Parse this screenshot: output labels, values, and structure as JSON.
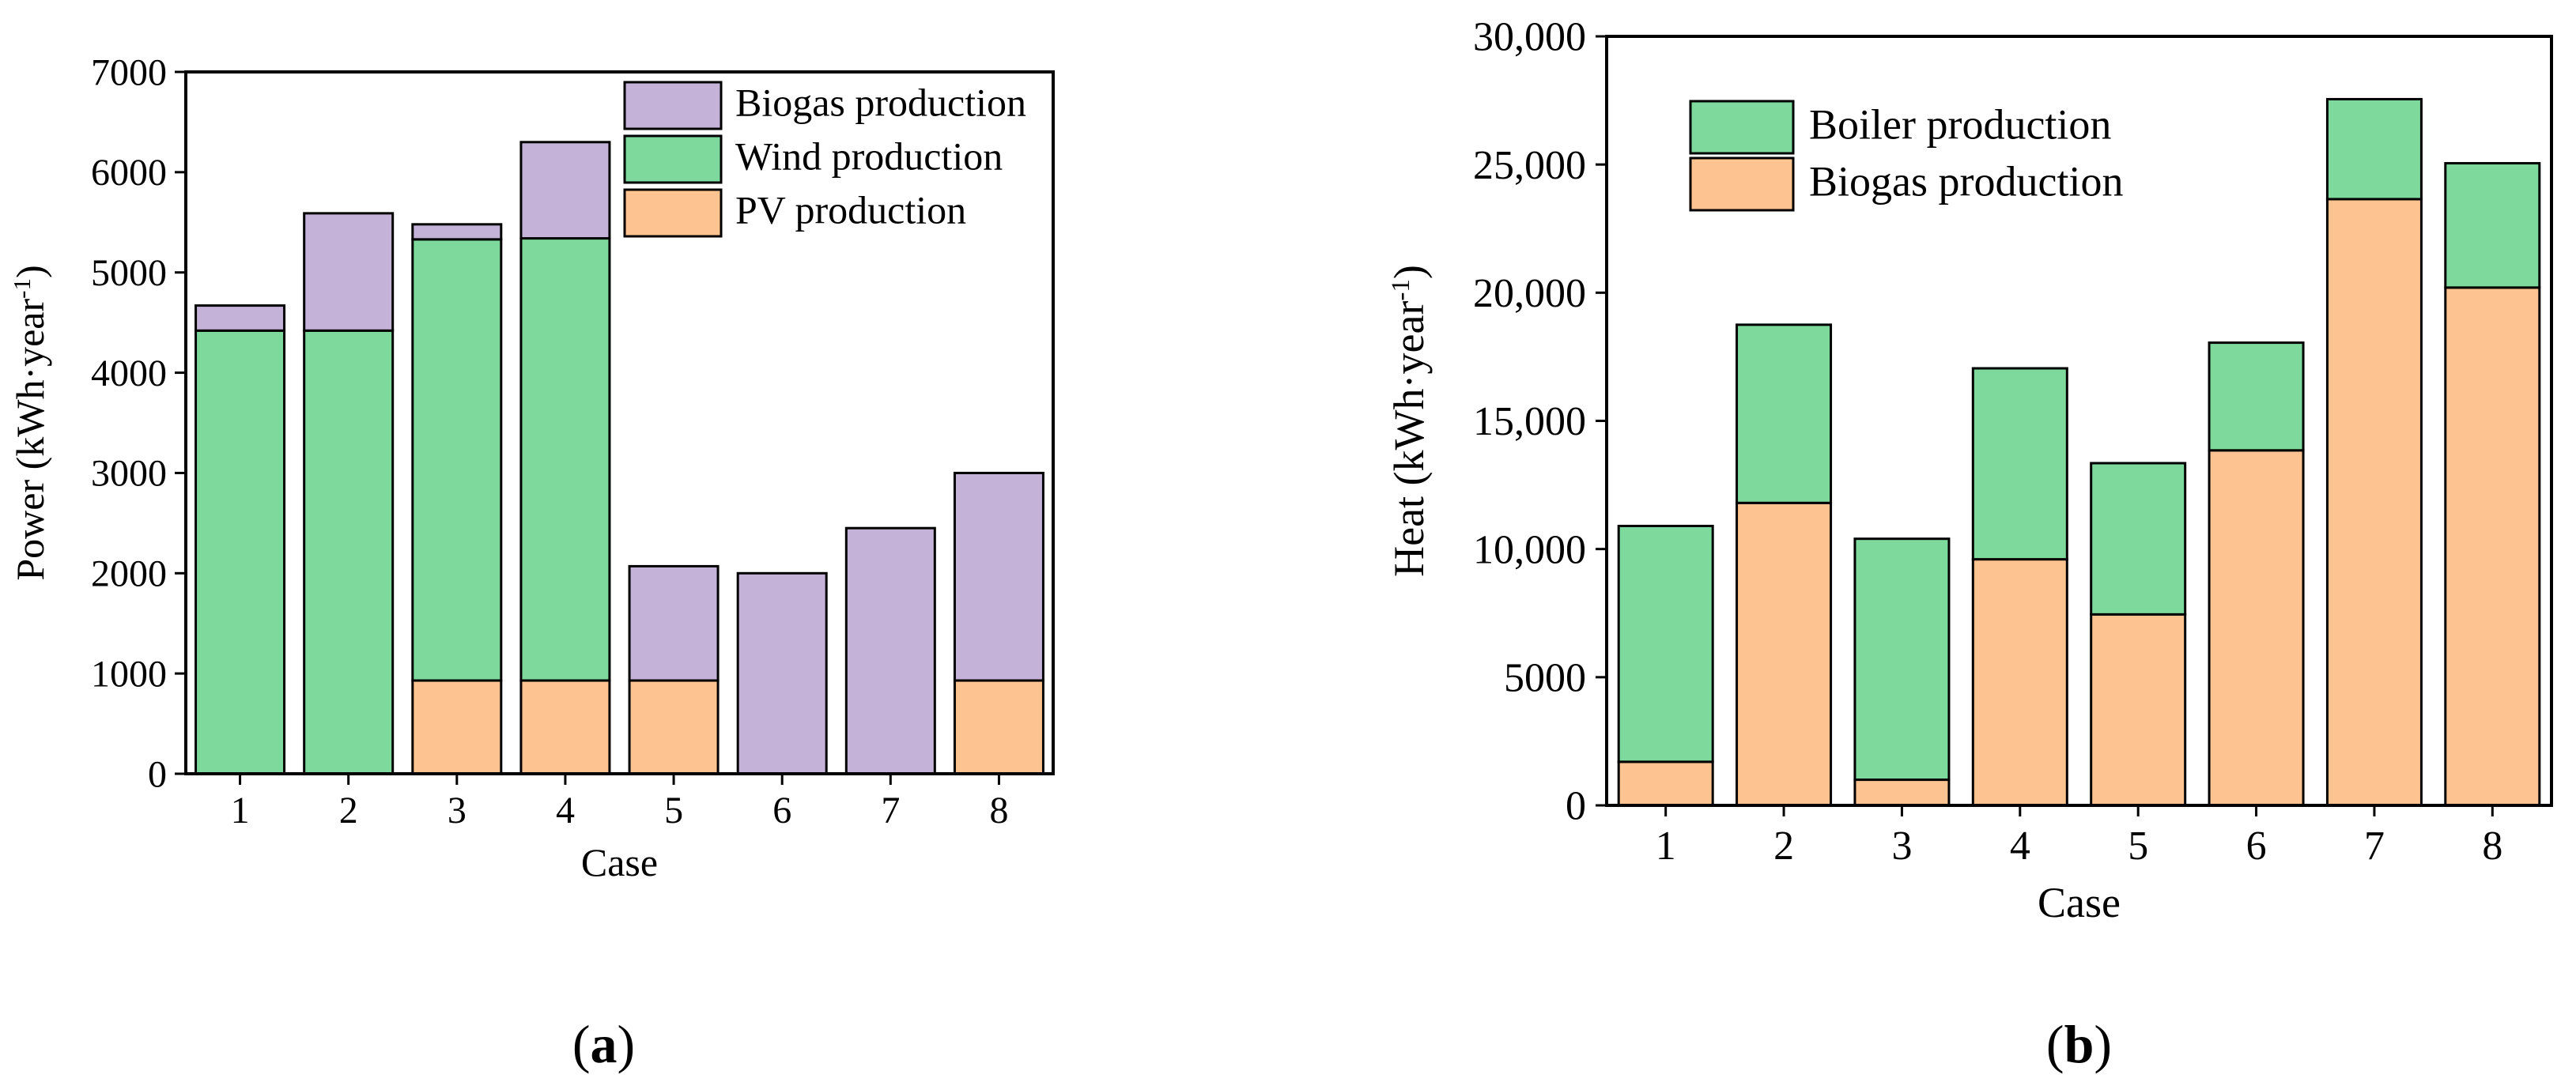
{
  "colors": {
    "pv": "#FDC491",
    "wind": "#7DD99C",
    "biogas": "#C5B2D8",
    "boiler": "#7DD99C",
    "heat_biogas": "#FDC491",
    "stroke": "#000000"
  },
  "chart_data": [
    {
      "type": "bar",
      "stacked": true,
      "panel": "(a)",
      "panel_letter": "a",
      "xlabel": "Case",
      "ylabel_main": "Power (kWh·year",
      "ylabel_sup": "-1",
      "ylabel_close": ")",
      "categories": [
        "1",
        "2",
        "3",
        "4",
        "5",
        "6",
        "7",
        "8"
      ],
      "ylim": [
        0,
        7000
      ],
      "yticks": [
        0,
        1000,
        2000,
        3000,
        4000,
        5000,
        6000,
        7000
      ],
      "ytick_labels": [
        "0",
        "1000",
        "2000",
        "3000",
        "4000",
        "5000",
        "6000",
        "7000"
      ],
      "legend_position": "top-right",
      "series": [
        {
          "name": "PV production",
          "color_key": "pv",
          "values": [
            0,
            0,
            930,
            930,
            930,
            0,
            0,
            930
          ]
        },
        {
          "name": "Wind production",
          "color_key": "wind",
          "values": [
            4420,
            4420,
            4400,
            4410,
            0,
            0,
            0,
            0
          ]
        },
        {
          "name": "Biogas production",
          "color_key": "biogas",
          "values": [
            250,
            1170,
            150,
            960,
            1140,
            2000,
            2450,
            2070
          ]
        }
      ],
      "legend_order": [
        "Biogas production",
        "Wind production",
        "PV production"
      ]
    },
    {
      "type": "bar",
      "stacked": true,
      "panel": "(b)",
      "panel_letter": "b",
      "xlabel": "Case",
      "ylabel_main": "Heat (kWh·year",
      "ylabel_sup": "-1",
      "ylabel_close": ")",
      "categories": [
        "1",
        "2",
        "3",
        "4",
        "5",
        "6",
        "7",
        "8"
      ],
      "ylim": [
        0,
        30000
      ],
      "yticks": [
        0,
        5000,
        10000,
        15000,
        20000,
        25000,
        30000
      ],
      "ytick_labels": [
        "0",
        "5000",
        "10,000",
        "15,000",
        "20,000",
        "25,000",
        "30,000"
      ],
      "legend_position": "top-left",
      "series": [
        {
          "name": "Biogas production",
          "color_key": "heat_biogas",
          "values": [
            1700,
            11800,
            1000,
            9600,
            7450,
            13850,
            23650,
            20200
          ]
        },
        {
          "name": "Boiler production",
          "color_key": "boiler",
          "values": [
            9200,
            6950,
            9400,
            7450,
            5900,
            4200,
            3900,
            4850
          ]
        }
      ],
      "legend_order": [
        "Boiler production",
        "Biogas production"
      ]
    }
  ]
}
